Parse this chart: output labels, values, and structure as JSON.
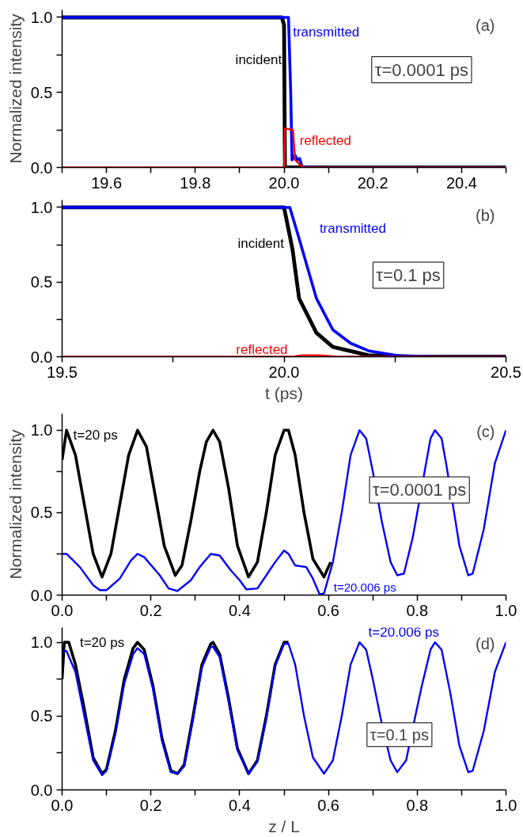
{
  "chart_data": [
    {
      "type": "line",
      "xlim": [
        19.5,
        20.5
      ],
      "xticks": [
        {
          "value": 19.5,
          "label": null
        },
        {
          "value": 19.6,
          "label": "19.6"
        },
        {
          "value": 19.7,
          "label": null
        },
        {
          "value": 19.8,
          "label": "19.8"
        },
        {
          "value": 19.9,
          "label": null
        },
        {
          "value": 20.0,
          "label": "20.0"
        },
        {
          "value": 20.1,
          "label": null
        },
        {
          "value": 20.2,
          "label": "20.2"
        },
        {
          "value": 20.3,
          "label": null
        },
        {
          "value": 20.4,
          "label": "20.4"
        },
        {
          "value": 20.5,
          "label": null
        }
      ],
      "ylim": [
        0,
        1.05
      ],
      "yticks": [
        {
          "value": 0.0,
          "label": "0.0"
        },
        {
          "value": 0.25,
          "label": null
        },
        {
          "value": 0.5,
          "label": "0.5"
        },
        {
          "value": 0.75,
          "label": null
        },
        {
          "value": 1.0,
          "label": "1.0"
        }
      ],
      "ylabel": "Normalized intensity",
      "grid": false,
      "marker": "none",
      "line_style": "solid",
      "annotations": [
        "(a)",
        "τ=0.0001 ps"
      ],
      "series": [
        {
          "name": "incident",
          "color": "#000000",
          "x": [
            19.5,
            19.995,
            20.0,
            20.002,
            20.5
          ],
          "values": [
            1.0,
            1.0,
            0.95,
            0.0,
            0.0
          ]
        },
        {
          "name": "transmitted",
          "color": "#0000ff",
          "x": [
            19.5,
            20.01,
            20.015,
            20.018,
            20.025,
            20.03,
            20.035,
            20.04,
            20.05,
            20.5
          ],
          "values": [
            1.0,
            1.0,
            0.5,
            0.05,
            0.08,
            0.05,
            0.06,
            0.01,
            0.0,
            0.0
          ]
        },
        {
          "name": "reflected",
          "color": "#ff0000",
          "x": [
            19.5,
            20.0,
            20.002,
            20.02,
            20.025,
            20.035,
            20.045,
            20.5
          ],
          "values": [
            0.0,
            0.0,
            0.26,
            0.25,
            0.05,
            0.02,
            0.0,
            0.0
          ]
        }
      ]
    },
    {
      "type": "line",
      "xlim": [
        19.5,
        20.5
      ],
      "xticks": [
        {
          "value": 19.5,
          "label": "19.5"
        },
        {
          "value": 19.75,
          "label": null
        },
        {
          "value": 20.0,
          "label": "20.0"
        },
        {
          "value": 20.25,
          "label": null
        },
        {
          "value": 20.5,
          "label": "20.5"
        }
      ],
      "ylim": [
        0,
        1.05
      ],
      "yticks": [
        {
          "value": 0.0,
          "label": "0.0"
        },
        {
          "value": 0.25,
          "label": null
        },
        {
          "value": 0.5,
          "label": "0.5"
        },
        {
          "value": 0.75,
          "label": null
        },
        {
          "value": 1.0,
          "label": "1.0"
        }
      ],
      "xlabel": "t (ps)",
      "grid": false,
      "marker": "none",
      "line_style": "solid",
      "annotations": [
        "(b)",
        "τ=0.1 ps"
      ],
      "series": [
        {
          "name": "incident",
          "color": "#000000",
          "x": [
            19.5,
            20.0,
            20.019,
            20.034,
            20.073,
            20.11,
            20.19,
            20.3,
            20.5
          ],
          "values": [
            1.0,
            1.0,
            0.72,
            0.39,
            0.16,
            0.066,
            0.01,
            0.0,
            0.0
          ]
        },
        {
          "name": "transmitted",
          "color": "#0000ff",
          "x": [
            19.5,
            20.013,
            20.034,
            20.073,
            20.11,
            20.15,
            20.19,
            20.26,
            20.35,
            20.5
          ],
          "values": [
            1.0,
            1.0,
            0.79,
            0.39,
            0.18,
            0.09,
            0.04,
            0.005,
            0.0,
            0.0
          ]
        },
        {
          "name": "reflected",
          "color": "#ff0000",
          "x": [
            19.5,
            20.02,
            20.04,
            20.08,
            20.12,
            20.5
          ],
          "values": [
            0.0,
            0.0,
            0.01,
            0.01,
            0.0,
            0.0
          ]
        }
      ]
    },
    {
      "type": "line",
      "xlim": [
        0,
        1.0
      ],
      "xticks": [
        {
          "value": 0.0,
          "label": "0.0"
        },
        {
          "value": 0.1,
          "label": null
        },
        {
          "value": 0.2,
          "label": "0.2"
        },
        {
          "value": 0.3,
          "label": null
        },
        {
          "value": 0.4,
          "label": "0.4"
        },
        {
          "value": 0.5,
          "label": null
        },
        {
          "value": 0.6,
          "label": "0.6"
        },
        {
          "value": 0.7,
          "label": null
        },
        {
          "value": 0.8,
          "label": "0.8"
        },
        {
          "value": 0.9,
          "label": null
        },
        {
          "value": 1.0,
          "label": "1.0"
        }
      ],
      "ylim": [
        0,
        1.1
      ],
      "yticks": [
        {
          "value": 0.0,
          "label": "0.0"
        },
        {
          "value": 0.25,
          "label": null
        },
        {
          "value": 0.5,
          "label": "0.5"
        },
        {
          "value": 0.75,
          "label": null
        },
        {
          "value": 1.0,
          "label": "1.0"
        }
      ],
      "ylabel": "Normalized intensity",
      "grid": false,
      "marker": "none",
      "line_style": "solid",
      "annotations": [
        "(c)",
        "τ=0.0001 ps"
      ],
      "series": [
        {
          "name": "t=20 ps",
          "color": "#000000",
          "x": [
            0,
            0.01,
            0.03,
            0.05,
            0.07,
            0.09,
            0.11,
            0.13,
            0.15,
            0.17,
            0.19,
            0.21,
            0.23,
            0.255,
            0.27,
            0.29,
            0.31,
            0.325,
            0.34,
            0.355,
            0.375,
            0.395,
            0.42,
            0.44,
            0.46,
            0.48,
            0.5,
            0.51,
            0.525,
            0.545,
            0.565,
            0.59,
            0.605
          ],
          "values": [
            0.82,
            1.0,
            0.85,
            0.55,
            0.25,
            0.11,
            0.25,
            0.55,
            0.85,
            1.0,
            0.9,
            0.6,
            0.3,
            0.12,
            0.18,
            0.45,
            0.75,
            0.93,
            1.0,
            0.93,
            0.65,
            0.3,
            0.11,
            0.2,
            0.5,
            0.85,
            1.0,
            1.0,
            0.85,
            0.5,
            0.22,
            0.11,
            0.2
          ]
        },
        {
          "name": "t=20.006 ps",
          "color": "#0000ff",
          "x": [
            0,
            0.01,
            0.04,
            0.07,
            0.085,
            0.1,
            0.13,
            0.155,
            0.17,
            0.185,
            0.22,
            0.24,
            0.26,
            0.29,
            0.31,
            0.335,
            0.355,
            0.38,
            0.4,
            0.415,
            0.44,
            0.46,
            0.48,
            0.5,
            0.51,
            0.525,
            0.55,
            0.565,
            0.58,
            0.59,
            0.61,
            0.63,
            0.65,
            0.67,
            0.685,
            0.7,
            0.72,
            0.74,
            0.755,
            0.77,
            0.79,
            0.8,
            0.82,
            0.83,
            0.84,
            0.855,
            0.865,
            0.885,
            0.895,
            0.915,
            0.925,
            0.95,
            0.975,
            1.0
          ],
          "values": [
            0.25,
            0.25,
            0.17,
            0.06,
            0.03,
            0.03,
            0.1,
            0.21,
            0.25,
            0.23,
            0.12,
            0.04,
            0.025,
            0.09,
            0.17,
            0.25,
            0.24,
            0.15,
            0.09,
            0.035,
            0.04,
            0.12,
            0.2,
            0.27,
            0.25,
            0.18,
            0.17,
            0.1,
            0.005,
            0.01,
            0.2,
            0.5,
            0.85,
            1.0,
            0.95,
            0.75,
            0.45,
            0.2,
            0.12,
            0.13,
            0.35,
            0.5,
            0.8,
            0.95,
            1.0,
            0.95,
            0.8,
            0.47,
            0.3,
            0.12,
            0.13,
            0.4,
            0.8,
            1.0
          ]
        }
      ]
    },
    {
      "type": "line",
      "xlim": [
        0,
        1.0
      ],
      "xticks": [
        {
          "value": 0.0,
          "label": "0.0"
        },
        {
          "value": 0.1,
          "label": null
        },
        {
          "value": 0.2,
          "label": "0.2"
        },
        {
          "value": 0.3,
          "label": null
        },
        {
          "value": 0.4,
          "label": "0.4"
        },
        {
          "value": 0.5,
          "label": null
        },
        {
          "value": 0.6,
          "label": "0.6"
        },
        {
          "value": 0.7,
          "label": null
        },
        {
          "value": 0.8,
          "label": "0.8"
        },
        {
          "value": 0.9,
          "label": null
        },
        {
          "value": 1.0,
          "label": "1.0"
        }
      ],
      "ylim": [
        0,
        1.1
      ],
      "yticks": [
        {
          "value": 0.0,
          "label": "0.0"
        },
        {
          "value": 0.25,
          "label": null
        },
        {
          "value": 0.5,
          "label": "0.5"
        },
        {
          "value": 0.75,
          "label": null
        },
        {
          "value": 1.0,
          "label": "1.0"
        }
      ],
      "xlabel": "z / L",
      "grid": false,
      "marker": "none",
      "line_style": "solid",
      "annotations": [
        "(d)",
        "τ=0.1 ps"
      ],
      "series": [
        {
          "name": "t=20 ps",
          "color": "#000000",
          "x": [
            0,
            0.005,
            0.015,
            0.03,
            0.05,
            0.07,
            0.09,
            0.1,
            0.12,
            0.14,
            0.16,
            0.17,
            0.185,
            0.205,
            0.225,
            0.245,
            0.26,
            0.275,
            0.295,
            0.315,
            0.335,
            0.34,
            0.355,
            0.375,
            0.395,
            0.42,
            0.44,
            0.46,
            0.48,
            0.5,
            0.51
          ],
          "values": [
            0.75,
            1.0,
            1.0,
            0.85,
            0.55,
            0.22,
            0.11,
            0.14,
            0.4,
            0.75,
            0.96,
            1.0,
            0.95,
            0.7,
            0.35,
            0.13,
            0.11,
            0.17,
            0.5,
            0.85,
            0.99,
            1.0,
            0.92,
            0.62,
            0.28,
            0.11,
            0.2,
            0.5,
            0.85,
            1.0,
            1.0
          ]
        },
        {
          "name": "t=20.006 ps",
          "color": "#0000ff",
          "x": [
            0,
            0.01,
            0.03,
            0.05,
            0.07,
            0.09,
            0.1,
            0.12,
            0.14,
            0.16,
            0.17,
            0.185,
            0.205,
            0.225,
            0.245,
            0.26,
            0.275,
            0.295,
            0.315,
            0.335,
            0.34,
            0.355,
            0.375,
            0.395,
            0.42,
            0.44,
            0.46,
            0.48,
            0.5,
            0.51,
            0.525,
            0.545,
            0.565,
            0.59,
            0.61,
            0.63,
            0.65,
            0.67,
            0.685,
            0.7,
            0.72,
            0.74,
            0.755,
            0.775,
            0.795,
            0.81,
            0.83,
            0.84,
            0.855,
            0.875,
            0.895,
            0.915,
            0.925,
            0.95,
            0.975,
            1.0
          ],
          "values": [
            0.94,
            0.94,
            0.8,
            0.5,
            0.2,
            0.1,
            0.13,
            0.38,
            0.72,
            0.92,
            0.96,
            0.92,
            0.68,
            0.33,
            0.12,
            0.11,
            0.16,
            0.48,
            0.83,
            0.97,
            0.97,
            0.9,
            0.6,
            0.27,
            0.11,
            0.19,
            0.48,
            0.84,
            0.99,
            0.99,
            0.85,
            0.5,
            0.22,
            0.11,
            0.2,
            0.5,
            0.85,
            1.0,
            0.95,
            0.75,
            0.45,
            0.2,
            0.12,
            0.2,
            0.49,
            0.7,
            0.95,
            1.0,
            0.95,
            0.65,
            0.3,
            0.12,
            0.13,
            0.4,
            0.8,
            1.0
          ]
        }
      ]
    }
  ]
}
